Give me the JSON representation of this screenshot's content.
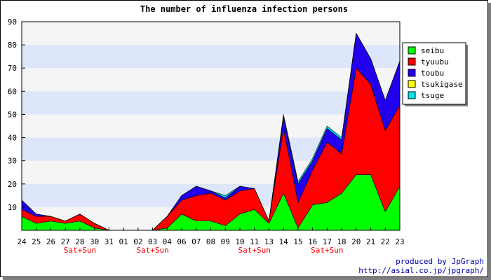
{
  "chart_data": {
    "type": "area",
    "stacked": true,
    "title": "The number of influenza infection persons",
    "x": [
      "24",
      "25",
      "26",
      "27",
      "28",
      "30",
      "31",
      "01",
      "02",
      "03",
      "04",
      "06",
      "07",
      "08",
      "09",
      "10",
      "11",
      "13",
      "14",
      "15",
      "16",
      "17",
      "18",
      "20",
      "21",
      "22",
      "23"
    ],
    "weekend_marker_label": "Sat+Sun",
    "weekend_markers": [
      "28",
      "03",
      "11",
      "17"
    ],
    "ylim": [
      0,
      90
    ],
    "yticks": [
      10,
      20,
      30,
      40,
      50,
      60,
      70,
      80,
      90
    ],
    "grid": true,
    "legend_position": "top-right",
    "series": [
      {
        "name": "seibu",
        "color": "#00ff00",
        "values": [
          6,
          3,
          4,
          3,
          4,
          1,
          0,
          0,
          0,
          0,
          1,
          7,
          4,
          4,
          2,
          7,
          9,
          3,
          16,
          1,
          11,
          12,
          16,
          24,
          24,
          8,
          19
        ]
      },
      {
        "name": "tyuubu",
        "color": "#ff0000",
        "values": [
          3,
          3,
          2,
          1,
          3,
          2,
          0,
          0,
          0,
          0,
          5,
          6,
          11,
          12,
          11,
          10,
          9,
          1,
          28,
          11,
          15,
          26,
          17,
          46,
          39,
          35,
          35
        ]
      },
      {
        "name": "toubu",
        "color": "#2200ee",
        "values": [
          4,
          1,
          0,
          0,
          0,
          0,
          0,
          0,
          0,
          0,
          0,
          2,
          4,
          1,
          1,
          2,
          0,
          0,
          5,
          8,
          4,
          6,
          6,
          15,
          11,
          13,
          19
        ]
      },
      {
        "name": "tsukigase",
        "color": "#ffff00",
        "values": [
          0,
          0,
          0,
          0,
          0,
          0,
          0,
          0,
          0,
          0,
          0,
          0,
          0,
          0,
          0,
          0,
          0,
          0,
          0,
          0,
          0,
          0,
          0,
          0,
          0,
          0,
          0
        ]
      },
      {
        "name": "tsuge",
        "color": "#00e5ee",
        "values": [
          0,
          0,
          0,
          0,
          0,
          0,
          0,
          0,
          0,
          0,
          0,
          0,
          0,
          0,
          1,
          0,
          0,
          0,
          1,
          1,
          1,
          1,
          1,
          0,
          0,
          0,
          0
        ]
      }
    ]
  },
  "credits": {
    "line1": "produced by JpGraph",
    "line2": "http://asial.co.jp/jpgraph/"
  },
  "colors": {
    "band_light": "#f5f5f5",
    "band_blue": "#dde6fa",
    "weekend_label": "#ff0000",
    "credit_text": "#0000aa"
  }
}
